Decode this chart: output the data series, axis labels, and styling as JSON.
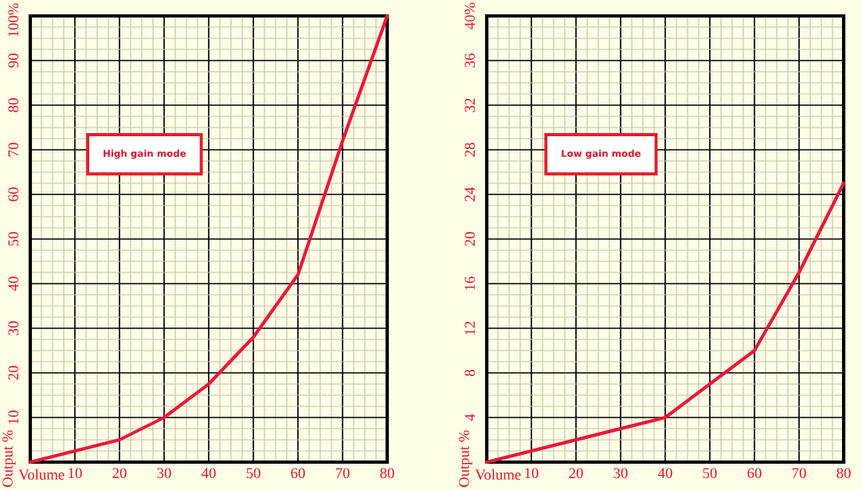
{
  "chart_data": [
    {
      "type": "line",
      "xlabel": "Volume",
      "ylabel": "Output %",
      "annotations": [
        "High gain mode"
      ],
      "x": [
        0,
        20,
        30,
        40,
        50,
        60,
        70,
        80
      ],
      "series": [
        {
          "color": "#e8193c",
          "values": [
            0,
            5,
            10,
            17.5,
            28,
            42,
            72,
            100
          ]
        }
      ],
      "xlim": [
        0,
        80
      ],
      "ylim": [
        0,
        100
      ],
      "xticks": [
        10,
        20,
        30,
        40,
        50,
        60,
        70,
        80
      ],
      "yticks": [
        10,
        20,
        30,
        40,
        50,
        60,
        70,
        80,
        90,
        {
          "value": 100,
          "label": "100%"
        }
      ],
      "grid": true,
      "line_style": "solid"
    },
    {
      "type": "line",
      "xlabel": "Volume",
      "ylabel": "Output %",
      "annotations": [
        "Low gain mode"
      ],
      "x": [
        0,
        40,
        60,
        70,
        80
      ],
      "series": [
        {
          "color": "#e8193c",
          "values": [
            0,
            4,
            10,
            17,
            25
          ]
        }
      ],
      "xlim": [
        0,
        80
      ],
      "ylim": [
        0,
        40
      ],
      "xticks": [
        10,
        20,
        30,
        40,
        50,
        60,
        70,
        80
      ],
      "yticks": [
        4,
        8,
        12,
        16,
        20,
        24,
        28,
        32,
        36,
        {
          "value": 40,
          "label": "40%"
        }
      ],
      "grid": true,
      "line_style": "solid"
    }
  ]
}
